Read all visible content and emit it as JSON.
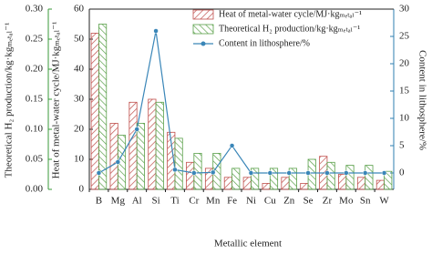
{
  "chart_data": {
    "type": "bar-line",
    "xlabel": "Metallic element",
    "ylabel": "Heat of metal-water cycle/MJ·kgₘₑₜₐₗ⁻¹",
    "y2label": "Content in lithosphere/%",
    "y3label": "Theoretical H₂ production/kg·kgₘₑₜₐₗ⁻¹",
    "categories": [
      "B",
      "Mg",
      "Al",
      "Si",
      "Ti",
      "Cr",
      "Mn",
      "Fe",
      "Ni",
      "Cu",
      "Zn",
      "Se",
      "Zr",
      "Mo",
      "Sn",
      "W"
    ],
    "series": [
      {
        "name": "Heat of metal-water cycle/MJ·kgₘₑₜₐₗ⁻¹",
        "type": "bar",
        "color": "#c0504d",
        "values": [
          52,
          22,
          29,
          30,
          19,
          9,
          7,
          4,
          4,
          2,
          4,
          2,
          11,
          5,
          4,
          3
        ]
      },
      {
        "name": "Theoretical H₂ production/kg·kgₘₑₜₐₗ⁻¹",
        "type": "bar",
        "axis": "y3",
        "color": "#5aa04a",
        "values": [
          0.275,
          0.09,
          0.11,
          0.145,
          0.085,
          0.06,
          0.06,
          0.035,
          0.035,
          0.035,
          0.035,
          0.05,
          0.045,
          0.04,
          0.04,
          0.03
        ]
      },
      {
        "name": "Content in lithosphere/%",
        "type": "line",
        "axis": "y2",
        "color": "#3a86b8",
        "values": [
          0,
          2,
          8,
          26,
          0.6,
          0,
          0.1,
          5,
          0,
          0,
          0,
          0,
          0,
          0,
          0,
          0
        ]
      }
    ],
    "ylim": [
      0,
      60
    ],
    "yticks": [
      0,
      10,
      20,
      30,
      40,
      50,
      60
    ],
    "y2lim": [
      -3,
      30
    ],
    "y2ticks": [
      0,
      5,
      10,
      15,
      20,
      25,
      30
    ],
    "y3lim": [
      0,
      0.3
    ],
    "y3ticks": [
      {
        "value": 0,
        "label": "0.00"
      },
      0.05,
      {
        "value": 0.1,
        "label": "0.10"
      },
      0.15,
      {
        "value": 0.2,
        "label": "0.20"
      },
      0.25,
      {
        "value": 0.3,
        "label": "0.30"
      }
    ],
    "legend": "upper right"
  }
}
